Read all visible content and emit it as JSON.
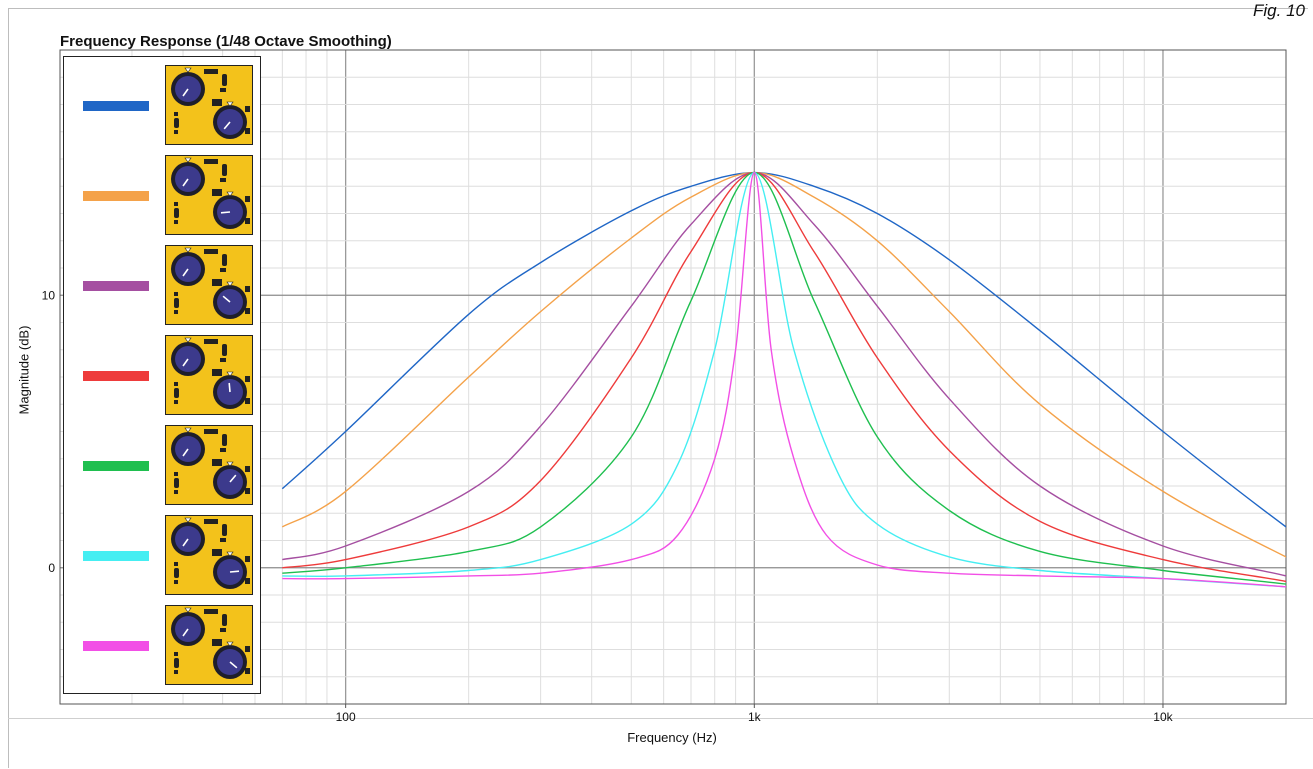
{
  "figure_label": "Fig. 10",
  "chart_data": {
    "type": "line",
    "title": "Frequency Response (1/48 Octave Smoothing)",
    "xlabel": "Frequency (Hz)",
    "ylabel": "Magnitude (dB)",
    "x_scale": "log",
    "xlim": [
      20,
      20000
    ],
    "ylim": [
      -5,
      19
    ],
    "x_ticks": [
      {
        "value": 100,
        "label": "100"
      },
      {
        "value": 1000,
        "label": "1k"
      },
      {
        "value": 10000,
        "label": "10k"
      }
    ],
    "y_ticks": [
      {
        "value": 0,
        "label": "0"
      },
      {
        "value": 10,
        "label": "10"
      }
    ],
    "grid": true,
    "legend_position": "left",
    "center_frequency_hz": 1000,
    "peak_gain_db": 14.5,
    "series": [
      {
        "color": "#1f66c6",
        "x": [
          70,
          100,
          200,
          300,
          500,
          700,
          1000,
          1400,
          2000,
          3000,
          5000,
          10000,
          20000,
          27000
        ],
        "y": [
          2.9,
          5.0,
          9.3,
          11.2,
          13.1,
          14.0,
          14.5,
          14.0,
          13.0,
          11.3,
          8.7,
          5.0,
          1.5,
          0.2
        ]
      },
      {
        "color": "#f4a24a",
        "x": [
          70,
          100,
          200,
          300,
          500,
          700,
          1000,
          1400,
          2000,
          3000,
          5000,
          10000,
          20000,
          27000
        ],
        "y": [
          1.5,
          2.8,
          7.0,
          9.4,
          12.1,
          13.6,
          14.5,
          13.6,
          12.0,
          9.4,
          6.0,
          2.8,
          0.4,
          -0.5
        ]
      },
      {
        "color": "#a54fa1",
        "x": [
          70,
          100,
          200,
          300,
          500,
          700,
          1000,
          1400,
          2000,
          3000,
          5000,
          10000,
          20000,
          27000
        ],
        "y": [
          0.3,
          0.8,
          2.8,
          5.2,
          9.6,
          12.6,
          14.5,
          12.6,
          9.6,
          6.2,
          3.0,
          0.8,
          -0.3,
          -0.8
        ]
      },
      {
        "color": "#ee3b3b",
        "x": [
          70,
          100,
          200,
          300,
          500,
          700,
          1000,
          1400,
          2000,
          3000,
          5000,
          10000,
          20000,
          27000
        ],
        "y": [
          0.0,
          0.3,
          1.5,
          3.2,
          7.7,
          11.6,
          14.5,
          11.6,
          7.7,
          4.3,
          1.7,
          0.3,
          -0.5,
          -0.9
        ]
      },
      {
        "color": "#1fbf4f",
        "x": [
          70,
          100,
          200,
          300,
          500,
          700,
          1000,
          1400,
          2000,
          3000,
          5000,
          10000,
          20000,
          27000
        ],
        "y": [
          -0.2,
          0.0,
          0.6,
          1.5,
          4.8,
          9.8,
          14.5,
          9.8,
          4.8,
          2.1,
          0.6,
          -0.1,
          -0.6,
          -0.9
        ]
      },
      {
        "color": "#45eef2",
        "x": [
          70,
          100,
          200,
          300,
          500,
          650,
          800,
          1000,
          1250,
          1600,
          2000,
          3000,
          5000,
          10000,
          20000,
          27000
        ],
        "y": [
          -0.3,
          -0.3,
          -0.1,
          0.3,
          1.6,
          3.8,
          8.0,
          14.5,
          8.0,
          3.5,
          1.6,
          0.4,
          -0.1,
          -0.4,
          -0.7,
          -0.9
        ]
      },
      {
        "color": "#f24fe6",
        "x": [
          70,
          100,
          200,
          300,
          500,
          650,
          800,
          900,
          1000,
          1100,
          1250,
          1500,
          2000,
          3000,
          5000,
          10000,
          20000,
          27000
        ],
        "y": [
          -0.4,
          -0.4,
          -0.3,
          -0.2,
          0.3,
          1.2,
          4.0,
          8.0,
          14.5,
          8.0,
          4.0,
          1.2,
          0.1,
          -0.2,
          -0.3,
          -0.4,
          -0.7,
          -0.9
        ]
      }
    ]
  }
}
